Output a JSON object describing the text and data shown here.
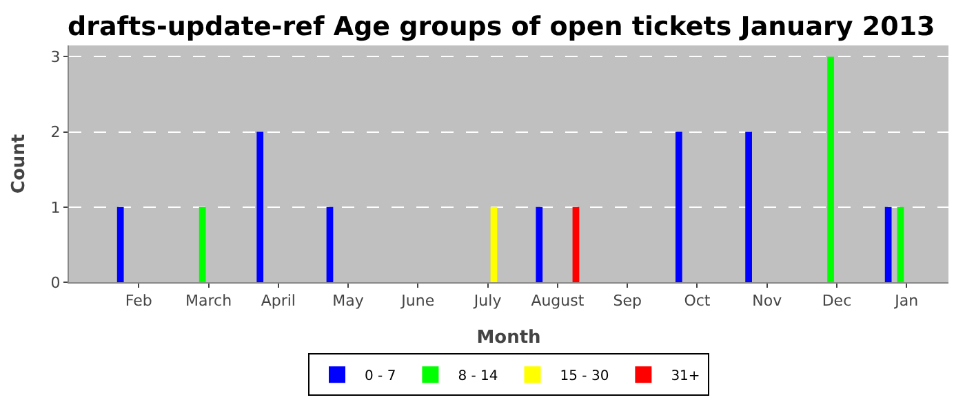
{
  "chart_data": {
    "type": "bar",
    "title": "drafts-update-ref Age groups of open tickets January 2013",
    "xlabel": "Month",
    "ylabel": "Count",
    "categories": [
      "Feb",
      "March",
      "April",
      "May",
      "June",
      "July",
      "August",
      "Sep",
      "Oct",
      "Nov",
      "Dec",
      "Jan"
    ],
    "series": [
      {
        "name": "0 - 7",
        "color": "#0000ff",
        "values": [
          1,
          null,
          2,
          1,
          null,
          null,
          1,
          null,
          2,
          2,
          null,
          1
        ]
      },
      {
        "name": "8 - 14",
        "color": "#00ff00",
        "values": [
          null,
          1,
          null,
          null,
          null,
          null,
          null,
          null,
          null,
          null,
          3,
          1
        ]
      },
      {
        "name": "15 - 30",
        "color": "#ffff00",
        "values": [
          null,
          null,
          null,
          null,
          null,
          1,
          null,
          null,
          null,
          null,
          null,
          null
        ]
      },
      {
        "name": "31+",
        "color": "#ff0000",
        "values": [
          null,
          null,
          null,
          null,
          null,
          null,
          1,
          null,
          null,
          null,
          null,
          null
        ]
      }
    ],
    "ylim": [
      0,
      3.15
    ],
    "yticks": [
      0,
      1,
      2,
      3
    ],
    "grid": "y",
    "legend": "bottom"
  }
}
